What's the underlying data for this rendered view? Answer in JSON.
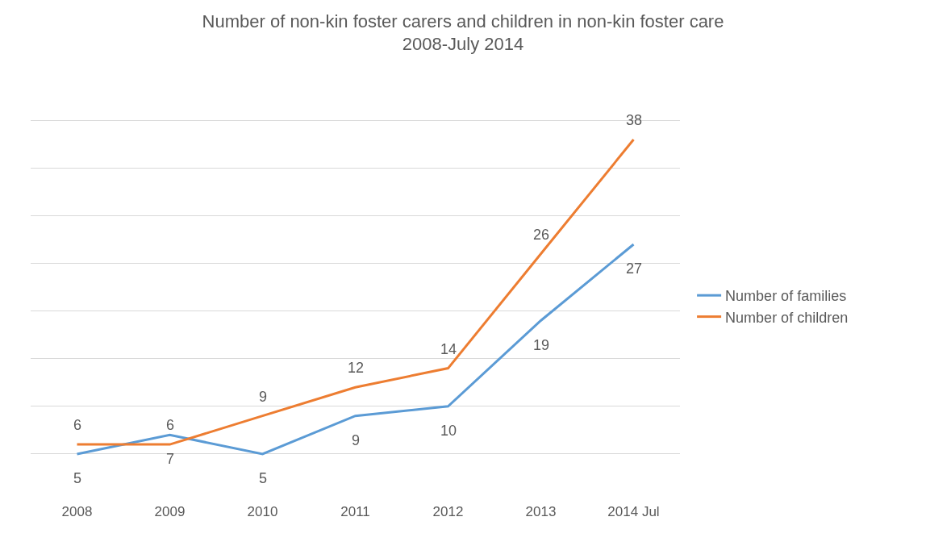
{
  "chart_data": {
    "type": "line",
    "title": "Number of non-kin foster carers and children in non-kin foster care\n2008-July 2014",
    "categories": [
      "2008",
      "2009",
      "2010",
      "2011",
      "2012",
      "2013",
      "2014 Jul"
    ],
    "series": [
      {
        "name": "Number of families",
        "color": "#5b9bd5",
        "values": [
          5,
          7,
          5,
          9,
          10,
          19,
          27
        ]
      },
      {
        "name": "Number of children",
        "color": "#ed7d31",
        "values": [
          6,
          6,
          9,
          12,
          14,
          26,
          38
        ]
      }
    ],
    "tick_labels": "x",
    "grid": "y",
    "legend": "right",
    "data_labels": true,
    "marker": "none",
    "line_style": "solid"
  }
}
